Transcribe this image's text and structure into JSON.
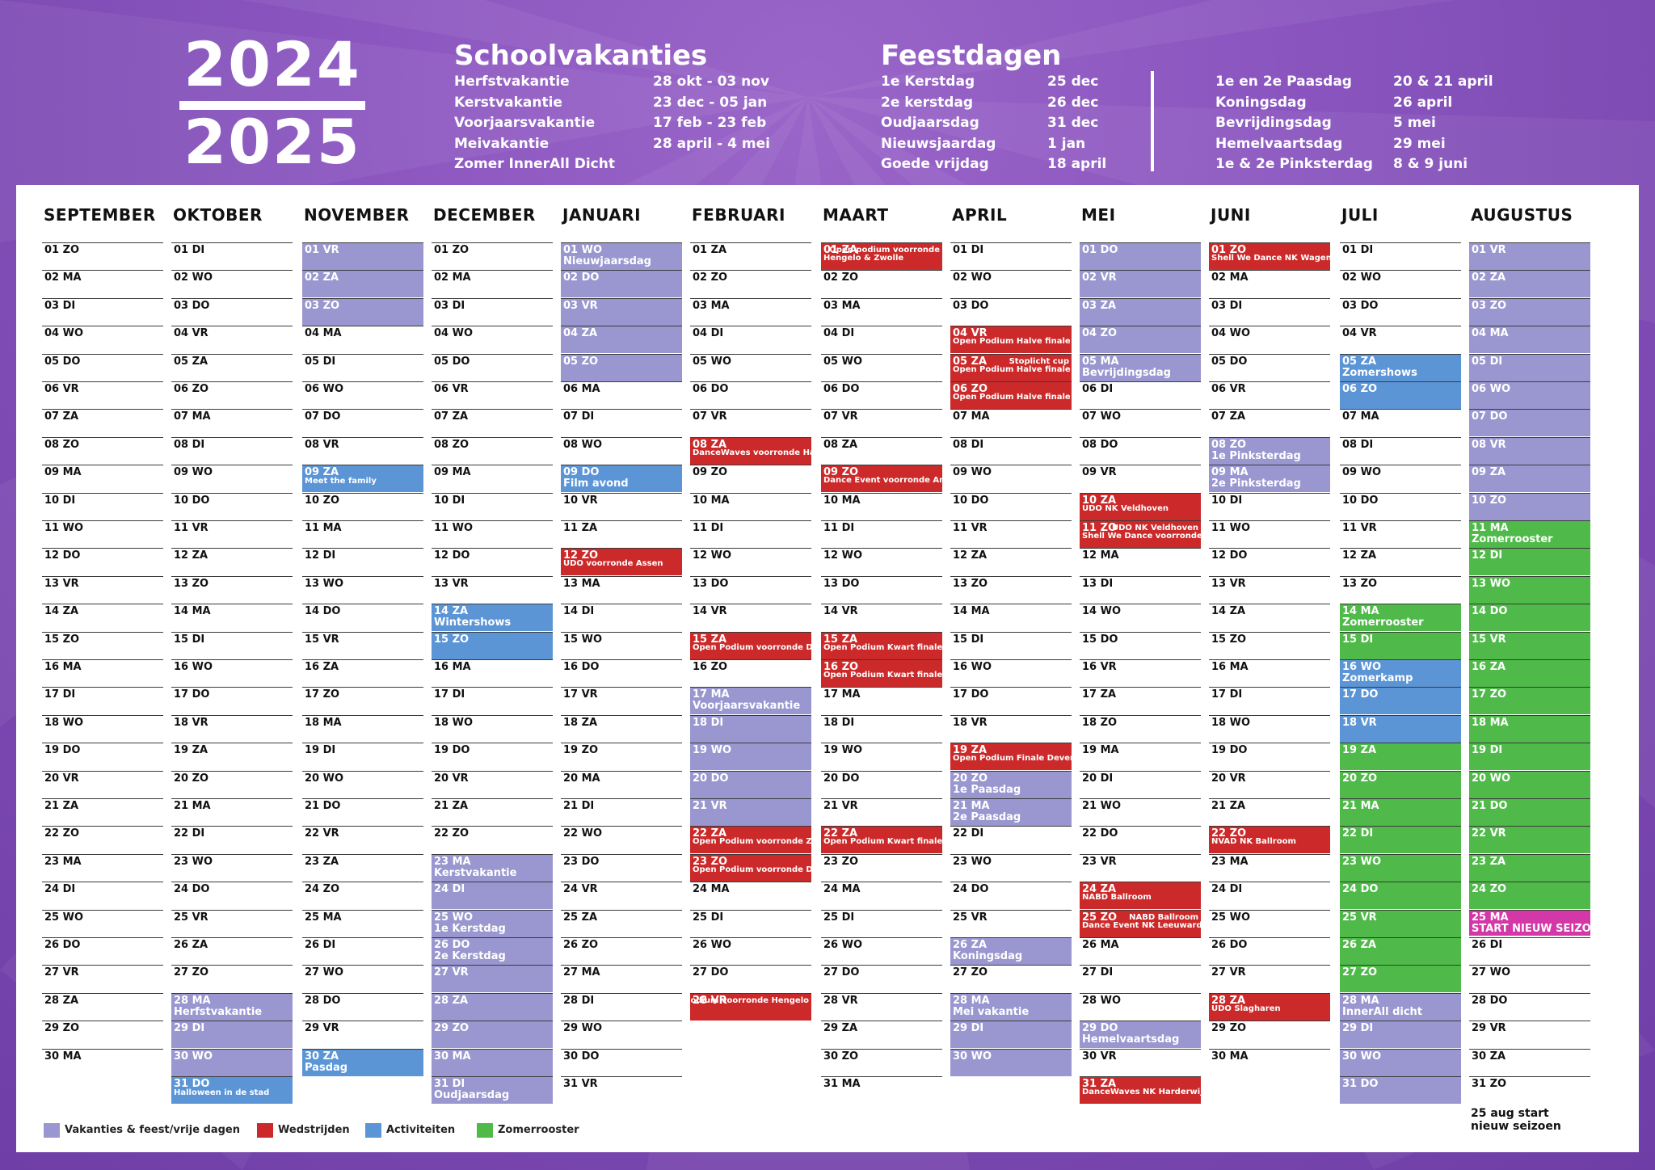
{
  "header": {
    "year_top": "2024",
    "year_bottom": "2025",
    "school": {
      "title": "Schoolvakanties",
      "rows": [
        [
          "Herfstvakantie",
          "28 okt - 03 nov"
        ],
        [
          "Kerstvakantie",
          "23 dec - 05 jan"
        ],
        [
          "Voorjaarsvakantie",
          "17 feb - 23 feb"
        ],
        [
          "Meivakantie",
          "28 april - 4 mei"
        ],
        [
          "Zomer InnerAll  Dicht",
          ""
        ]
      ]
    },
    "holidays": {
      "title": "Feestdagen",
      "rows_left": [
        [
          "1e Kerstdag",
          "25 dec"
        ],
        [
          "2e kerstdag",
          "26 dec"
        ],
        [
          "Oudjaarsdag",
          "31 dec"
        ],
        [
          "Nieuwsjaardag",
          "1 jan"
        ],
        [
          "Goede vrijdag",
          "18 april"
        ]
      ],
      "rows_right": [
        [
          "1e  en 2e Paasdag",
          "20 & 21 april"
        ],
        [
          "Koningsdag",
          "26 april"
        ],
        [
          "Bevrijdingsdag",
          "5 mei"
        ],
        [
          "Hemelvaartsdag",
          "29 mei"
        ],
        [
          "1e & 2e Pinksterdag",
          "8 & 9 juni"
        ]
      ]
    }
  },
  "colors": {
    "lav": "#9a97d0",
    "red": "#cc2a2a",
    "blue": "#5b95d6",
    "green": "#4fba49",
    "pink": "#d437a8",
    "purple": "#7a48b0"
  },
  "months": [
    {
      "name": "SEPTEMBER",
      "days": [
        "01 ZO",
        "02 MA",
        "03 DI",
        "04 WO",
        "05 DO",
        "06 VR",
        "07 ZA",
        "08 ZO",
        "09 MA",
        "10 DI",
        "11 WO",
        "12 DO",
        "13 VR",
        "14 ZA",
        "15 ZO",
        "16 MA",
        "17 DI",
        "18 WO",
        "19 DO",
        "20 VR",
        "21 ZA",
        "22 ZO",
        "23 MA",
        "24 DI",
        "25 WO",
        "26 DO",
        "27 VR",
        "28 ZA",
        "29 ZO",
        "30 MA"
      ],
      "events": {}
    },
    {
      "name": "OKTOBER",
      "days": [
        "01 DI",
        "02 WO",
        "03 DO",
        "04 VR",
        "05 ZA",
        "06 ZO",
        "07 MA",
        "08 DI",
        "09 WO",
        "10 DO",
        "11 VR",
        "12 ZA",
        "13 ZO",
        "14 MA",
        "15 DI",
        "16 WO",
        "17 DO",
        "18 VR",
        "19 ZA",
        "20 ZO",
        "21 MA",
        "22 DI",
        "23 WO",
        "24 DO",
        "25 VR",
        "26 ZA",
        "27 ZO",
        "28 MA",
        "29 DI",
        "30 WO",
        "31 DO"
      ],
      "events": {
        "28": {
          "c": "lav",
          "n": "Herfstvakantie"
        },
        "29": {
          "c": "lav"
        },
        "30": {
          "c": "lav"
        },
        "31": {
          "c": "blue",
          "n": "Halloween in de stad",
          "s": 1
        }
      }
    },
    {
      "name": "NOVEMBER",
      "days": [
        "01 VR",
        "02 ZA",
        "03 ZO",
        "04 MA",
        "05 DI",
        "06 WO",
        "07 DO",
        "08 VR",
        "09 ZA",
        "10 ZO",
        "11 MA",
        "12 DI",
        "13 WO",
        "14 DO",
        "15 VR",
        "16 ZA",
        "17 ZO",
        "18 MA",
        "19 DI",
        "20 WO",
        "21 DO",
        "22 VR",
        "23 ZA",
        "24 ZO",
        "25 MA",
        "26 DI",
        "27 WO",
        "28 DO",
        "29 VR",
        "30 ZA"
      ],
      "events": {
        "1": {
          "c": "lav"
        },
        "2": {
          "c": "lav"
        },
        "3": {
          "c": "lav"
        },
        "9": {
          "c": "blue",
          "n": "Meet the family",
          "s": 1
        },
        "30": {
          "c": "blue",
          "n": "Pasdag"
        }
      }
    },
    {
      "name": "DECEMBER",
      "days": [
        "01 ZO",
        "02 MA",
        "03 DI",
        "04 WO",
        "05 DO",
        "06 VR",
        "07 ZA",
        "08 ZO",
        "09 MA",
        "10 DI",
        "11 WO",
        "12 DO",
        "13 VR",
        "14 ZA",
        "15 ZO",
        "16 MA",
        "17 DI",
        "18 WO",
        "19 DO",
        "20 VR",
        "21 ZA",
        "22 ZO",
        "23 MA",
        "24 DI",
        "25 WO",
        "26 DO",
        "27 VR",
        "28 ZA",
        "29 ZO",
        "30 MA",
        "31 DI"
      ],
      "events": {
        "14": {
          "c": "blue",
          "n": "Wintershows"
        },
        "15": {
          "c": "blue"
        },
        "23": {
          "c": "lav",
          "n": "Kerstvakantie"
        },
        "24": {
          "c": "lav"
        },
        "25": {
          "c": "lav",
          "n": "1e Kerstdag"
        },
        "26": {
          "c": "lav",
          "n": "2e Kerstdag"
        },
        "27": {
          "c": "lav"
        },
        "28": {
          "c": "lav"
        },
        "29": {
          "c": "lav"
        },
        "30": {
          "c": "lav"
        },
        "31": {
          "c": "lav",
          "n": "Oudjaarsdag"
        }
      }
    },
    {
      "name": "JANUARI",
      "days": [
        "01 WO",
        "02 DO",
        "03 VR",
        "04 ZA",
        "05 ZO",
        "06 MA",
        "07 DI",
        "08 WO",
        "09 DO",
        "10 VR",
        "11 ZA",
        "12 ZO",
        "13 MA",
        "14 DI",
        "15 WO",
        "16 DO",
        "17 VR",
        "18 ZA",
        "19 ZO",
        "20 MA",
        "21 DI",
        "22 WO",
        "23 DO",
        "24 VR",
        "25 ZA",
        "26 ZO",
        "27 MA",
        "28 DI",
        "29 WO",
        "30 DO",
        "31 VR"
      ],
      "events": {
        "1": {
          "c": "lav",
          "n": "Nieuwjaarsdag"
        },
        "2": {
          "c": "lav"
        },
        "3": {
          "c": "lav"
        },
        "4": {
          "c": "lav"
        },
        "5": {
          "c": "lav"
        },
        "9": {
          "c": "blue",
          "n": "Film avond"
        },
        "12": {
          "c": "red",
          "n": "UDO voorronde Assen"
        }
      }
    },
    {
      "name": "FEBRUARI",
      "days": [
        "01 ZA",
        "02 ZO",
        "03 MA",
        "04 DI",
        "05 WO",
        "06 DO",
        "07 VR",
        "08 ZA",
        "09 ZO",
        "10 MA",
        "11 DI",
        "12 WO",
        "13 DO",
        "14 VR",
        "15 ZA",
        "16 ZO",
        "17 MA",
        "18 DI",
        "19 WO",
        "20 DO",
        "21 VR",
        "22 ZA",
        "23 ZO",
        "24 MA",
        "25 DI",
        "26 WO",
        "27 DO",
        "28 VR"
      ],
      "events": {
        "8": {
          "c": "red",
          "n": "DanceWaves voorronde Harderwijk"
        },
        "15": {
          "c": "red",
          "n": "Open Podium voorronde Deventer"
        },
        "17": {
          "c": "lav",
          "n": "Voorjaarsvakantie"
        },
        "18": {
          "c": "lav"
        },
        "19": {
          "c": "lav"
        },
        "20": {
          "c": "lav"
        },
        "21": {
          "c": "lav"
        },
        "22": {
          "c": "red",
          "n": "Open Podium voorronde Zwolle"
        },
        "23": {
          "c": "red",
          "n": "Open Podium voorronde Deventer"
        },
        "28": {
          "c": "red",
          "r": "Open Podium voorronde Hengelo"
        }
      }
    },
    {
      "name": "MAART",
      "days": [
        "01 ZA",
        "02 ZO",
        "03 MA",
        "04 DI",
        "05 WO",
        "06 DO",
        "07 VR",
        "08 ZA",
        "09 ZO",
        "10 MA",
        "11 DI",
        "12 WO",
        "13 DO",
        "14 VR",
        "15 ZA",
        "16 ZO",
        "17 MA",
        "18 DI",
        "19 WO",
        "20 DO",
        "21 VR",
        "22 ZA",
        "23 ZO",
        "24 MA",
        "25 DI",
        "26 WO",
        "27 DO",
        "28 VR",
        "29 ZA",
        "30 ZO",
        "31 MA"
      ],
      "events": {
        "1": {
          "c": "red",
          "r": "Open podium voorronde",
          "n": "Hengelo & Zwolle"
        },
        "9": {
          "c": "red",
          "n": "Dance Event voorronde Arnhem"
        },
        "15": {
          "c": "red",
          "n": "Open Podium Kwart finale Zwolle"
        },
        "16": {
          "c": "red",
          "n": "Open Podium Kwart finale Deventer"
        },
        "22": {
          "c": "red",
          "n": "Open Podium Kwart finale Hengelo"
        }
      }
    },
    {
      "name": "APRIL",
      "days": [
        "01 DI",
        "02 WO",
        "03 DO",
        "04 VR",
        "05 ZA",
        "06 ZO",
        "07 MA",
        "08 DI",
        "09 WO",
        "10 DO",
        "11 VR",
        "12 ZA",
        "13 ZO",
        "14 MA",
        "15 DI",
        "16 WO",
        "17 DO",
        "18 VR",
        "19 ZA",
        "20 ZO",
        "21 MA",
        "22 DI",
        "23 WO",
        "24 DO",
        "25 VR",
        "26 ZA",
        "27 ZO",
        "28 MA",
        "29 DI",
        "30 WO"
      ],
      "events": {
        "4": {
          "c": "red",
          "n": "Open Podium Halve finale Hengelo"
        },
        "5": {
          "c": "red",
          "r": "Stoplicht cup",
          "n": "Open Podium Halve finale Zwolle"
        },
        "6": {
          "c": "red",
          "n": "Open Podium Halve finale Deventer"
        },
        "19": {
          "c": "red",
          "n": "Open Podium Finale Deventer"
        },
        "20": {
          "c": "lav",
          "n": "1e Paasdag"
        },
        "21": {
          "c": "lav",
          "n": "2e Paasdag"
        },
        "26": {
          "c": "lav",
          "n": "Koningsdag"
        },
        "28": {
          "c": "lav",
          "n": "Mei vakantie"
        },
        "29": {
          "c": "lav"
        },
        "30": {
          "c": "lav"
        }
      }
    },
    {
      "name": "MEI",
      "days": [
        "01 DO",
        "02 VR",
        "03 ZA",
        "04 ZO",
        "05 MA",
        "06 DI",
        "07 WO",
        "08 DO",
        "09 VR",
        "10 ZA",
        "11 ZO",
        "12 MA",
        "13 DI",
        "14 WO",
        "15 DO",
        "16 VR",
        "17 ZA",
        "18 ZO",
        "19 MA",
        "20 DI",
        "21 WO",
        "22 DO",
        "23 VR",
        "24 ZA",
        "25 ZO",
        "26 MA",
        "27 DI",
        "28 WO",
        "29 DO",
        "30 VR",
        "31 ZA"
      ],
      "events": {
        "1": {
          "c": "lav"
        },
        "2": {
          "c": "lav"
        },
        "3": {
          "c": "lav"
        },
        "4": {
          "c": "lav"
        },
        "5": {
          "c": "lav",
          "n": "Bevrijdingsdag"
        },
        "10": {
          "c": "red",
          "n": "UDO NK Veldhoven"
        },
        "11": {
          "c": "red",
          "r": "UDO NK Veldhoven",
          "n": "Shell We Dance voorronde Barneveld"
        },
        "24": {
          "c": "red",
          "n": "NABD Ballroom"
        },
        "25": {
          "c": "red",
          "r": "NABD Ballroom",
          "n": "Dance Event NK Leeuwarden"
        },
        "29": {
          "c": "lav",
          "n": "Hemelvaartsdag"
        },
        "31": {
          "c": "red",
          "n": "DanceWaves NK Harderwijk"
        }
      }
    },
    {
      "name": "JUNI",
      "days": [
        "01 ZO",
        "02 MA",
        "03 DI",
        "04 WO",
        "05 DO",
        "06 VR",
        "07 ZA",
        "08 ZO",
        "09 MA",
        "10 DI",
        "11 WO",
        "12 DO",
        "13 VR",
        "14 ZA",
        "15 ZO",
        "16 MA",
        "17 DI",
        "18 WO",
        "19 DO",
        "20 VR",
        "21 ZA",
        "22 ZO",
        "23 MA",
        "24 DI",
        "25 WO",
        "26 DO",
        "27 VR",
        "28 ZA",
        "29 ZO",
        "30 MA"
      ],
      "events": {
        "1": {
          "c": "red",
          "n": "Shell We Dance NK Wageningen"
        },
        "8": {
          "c": "lav",
          "n": "1e Pinksterdag"
        },
        "9": {
          "c": "lav",
          "n": "2e Pinksterdag"
        },
        "22": {
          "c": "red",
          "n": "NVAD NK Ballroom"
        },
        "28": {
          "c": "red",
          "n": "UDO Slagharen"
        }
      }
    },
    {
      "name": "JULI",
      "days": [
        "01 DI",
        "02 WO",
        "03 DO",
        "04 VR",
        "05 ZA",
        "06 ZO",
        "07 MA",
        "08 DI",
        "09 WO",
        "10 DO",
        "11 VR",
        "12 ZA",
        "13 ZO",
        "14 MA",
        "15 DI",
        "16 WO",
        "17 DO",
        "18 VR",
        "19 ZA",
        "20 ZO",
        "21 MA",
        "22 DI",
        "23 WO",
        "24 DO",
        "25 VR",
        "26 ZA",
        "27 ZO",
        "28 MA",
        "29 DI",
        "30 WO",
        "31 DO"
      ],
      "events": {
        "5": {
          "c": "blue",
          "n": "Zomershows"
        },
        "6": {
          "c": "blue"
        },
        "14": {
          "c": "green",
          "n": "Zomerrooster"
        },
        "15": {
          "c": "green"
        },
        "16": {
          "c": "blue",
          "n": "Zomerkamp"
        },
        "17": {
          "c": "blue"
        },
        "18": {
          "c": "blue"
        },
        "19": {
          "c": "green"
        },
        "20": {
          "c": "green"
        },
        "21": {
          "c": "green"
        },
        "22": {
          "c": "green"
        },
        "23": {
          "c": "green"
        },
        "24": {
          "c": "green"
        },
        "25": {
          "c": "green"
        },
        "26": {
          "c": "green"
        },
        "27": {
          "c": "green"
        },
        "28": {
          "c": "lav",
          "n": "InnerAll dicht"
        },
        "29": {
          "c": "lav"
        },
        "30": {
          "c": "lav"
        },
        "31": {
          "c": "lav"
        }
      }
    },
    {
      "name": "AUGUSTUS",
      "days": [
        "01 VR",
        "02 ZA",
        "03 ZO",
        "04 MA",
        "05 DI",
        "06 WO",
        "07 DO",
        "08 VR",
        "09 ZA",
        "10 ZO",
        "11 MA",
        "12 DI",
        "13 WO",
        "14 DO",
        "15 VR",
        "16 ZA",
        "17 ZO",
        "18 MA",
        "19 DI",
        "20 WO",
        "21 DO",
        "22 VR",
        "23 ZA",
        "24 ZO",
        "25 MA",
        "26 DI",
        "27 WO",
        "28 DO",
        "29 VR",
        "30 ZA",
        "31 ZO"
      ],
      "events": {
        "1": {
          "c": "lav"
        },
        "2": {
          "c": "lav"
        },
        "3": {
          "c": "lav"
        },
        "4": {
          "c": "lav"
        },
        "5": {
          "c": "lav"
        },
        "6": {
          "c": "lav"
        },
        "7": {
          "c": "lav"
        },
        "8": {
          "c": "lav"
        },
        "9": {
          "c": "lav"
        },
        "10": {
          "c": "lav"
        },
        "11": {
          "c": "green",
          "n": "Zomerrooster"
        },
        "12": {
          "c": "green"
        },
        "13": {
          "c": "green"
        },
        "14": {
          "c": "green"
        },
        "15": {
          "c": "green"
        },
        "16": {
          "c": "green"
        },
        "17": {
          "c": "green"
        },
        "18": {
          "c": "green"
        },
        "19": {
          "c": "green"
        },
        "20": {
          "c": "green"
        },
        "21": {
          "c": "green"
        },
        "22": {
          "c": "green"
        },
        "23": {
          "c": "green"
        },
        "24": {
          "c": "green"
        },
        "25": {
          "c": "pink",
          "n": "START NIEUW SEIZOEN!!!"
        }
      }
    }
  ],
  "legend": [
    {
      "label": "Vakanties & feest/vrije dagen",
      "color": "#9a97d0"
    },
    {
      "label": "Wedstrijden",
      "color": "#cc2a2a"
    },
    {
      "label": "Activiteiten",
      "color": "#5b95d6"
    },
    {
      "label": "Zomerrooster",
      "color": "#4fba49"
    }
  ],
  "aug_note_1": "25 aug start",
  "aug_note_2": "nieuw seizoen"
}
